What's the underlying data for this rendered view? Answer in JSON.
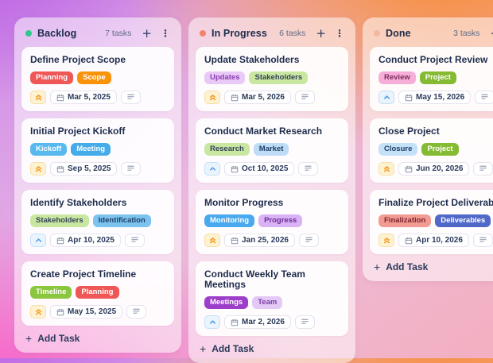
{
  "board": {
    "icons": {
      "plus": "+",
      "menu": "⋮"
    },
    "columns": [
      {
        "title": "Backlog",
        "dot_color": "#2ec98c",
        "count_label": "7 tasks",
        "add_task_label": "Add Task",
        "cards": [
          {
            "title": "Define Project Scope",
            "tags": [
              {
                "label": "Planning",
                "bg": "#ef5656",
                "fg": "#ffffff"
              },
              {
                "label": "Scope",
                "bg": "#f9930c",
                "fg": "#ffffff"
              }
            ],
            "priority": "high",
            "due_date": "Mar 5, 2025",
            "has_notes": true
          },
          {
            "title": "Initial Project Kickoff",
            "tags": [
              {
                "label": "Kickoff",
                "bg": "#58b9ee",
                "fg": "#ffffff"
              },
              {
                "label": "Meeting",
                "bg": "#45abe9",
                "fg": "#ffffff"
              }
            ],
            "priority": "high",
            "due_date": "Sep 5, 2025",
            "has_notes": true
          },
          {
            "title": "Identify Stakeholders",
            "tags": [
              {
                "label": "Stakeholders",
                "bg": "#c9e7a1",
                "fg": "#33425b"
              },
              {
                "label": "Identification",
                "bg": "#7cc3ef",
                "fg": "#1d3f66"
              }
            ],
            "priority": "medium",
            "due_date": "Apr 10, 2025",
            "has_notes": true
          },
          {
            "title": "Create Project Timeline",
            "tags": [
              {
                "label": "Timeline",
                "bg": "#8bc63f",
                "fg": "#ffffff"
              },
              {
                "label": "Planning",
                "bg": "#ef5656",
                "fg": "#ffffff"
              }
            ],
            "priority": "high",
            "due_date": "May 15, 2025",
            "has_notes": true
          }
        ]
      },
      {
        "title": "In Progress",
        "dot_color": "#f4826f",
        "count_label": "6 tasks",
        "add_task_label": "Add Task",
        "cards": [
          {
            "title": "Update Stakeholders",
            "tags": [
              {
                "label": "Updates",
                "bg": "#e9c9f5",
                "fg": "#8a3bb0"
              },
              {
                "label": "Stakeholders",
                "bg": "#c9e7a1",
                "fg": "#33425b"
              }
            ],
            "priority": "high",
            "due_date": "Mar 5, 2026",
            "has_notes": true
          },
          {
            "title": "Conduct Market Research",
            "tags": [
              {
                "label": "Research",
                "bg": "#c9e7a1",
                "fg": "#33425b"
              },
              {
                "label": "Market",
                "bg": "#bfdcf6",
                "fg": "#1d3f66"
              }
            ],
            "priority": "medium",
            "due_date": "Oct 10, 2025",
            "has_notes": true
          },
          {
            "title": "Monitor Progress",
            "tags": [
              {
                "label": "Monitoring",
                "bg": "#49a9ee",
                "fg": "#ffffff"
              },
              {
                "label": "Progress",
                "bg": "#d9b3f5",
                "fg": "#6e2d96"
              }
            ],
            "priority": "high",
            "due_date": "Jan 25, 2026",
            "has_notes": true
          },
          {
            "title": "Conduct Weekly Team Meetings",
            "tags": [
              {
                "label": "Meetings",
                "bg": "#9c3ec9",
                "fg": "#ffffff"
              },
              {
                "label": "Team",
                "bg": "#e4c9f6",
                "fg": "#7a3da5"
              }
            ],
            "priority": "medium",
            "due_date": "Mar 2, 2026",
            "has_notes": true
          }
        ]
      },
      {
        "title": "Done",
        "dot_color": "#f3b7a0",
        "count_label": "3 tasks",
        "add_task_label": "Add Task",
        "cards": [
          {
            "title": "Conduct Project Review",
            "tags": [
              {
                "label": "Review",
                "bg": "#f6aed9",
                "fg": "#7c2d5e"
              },
              {
                "label": "Project",
                "bg": "#85bb33",
                "fg": "#ffffff"
              }
            ],
            "priority": "medium",
            "due_date": "May 15, 2026",
            "has_notes": true
          },
          {
            "title": "Close Project",
            "tags": [
              {
                "label": "Closure",
                "bg": "#c5e1f7",
                "fg": "#1d3f66"
              },
              {
                "label": "Project",
                "bg": "#85bb33",
                "fg": "#ffffff"
              }
            ],
            "priority": "high",
            "due_date": "Jun 20, 2026",
            "has_notes": true
          },
          {
            "title": "Finalize Project Deliverables",
            "tags": [
              {
                "label": "Finalization",
                "bg": "#f29b92",
                "fg": "#7a2430"
              },
              {
                "label": "Deliverables",
                "bg": "#5069c8",
                "fg": "#ffffff"
              }
            ],
            "priority": "high",
            "due_date": "Apr 10, 2026",
            "has_notes": true
          }
        ]
      }
    ]
  }
}
